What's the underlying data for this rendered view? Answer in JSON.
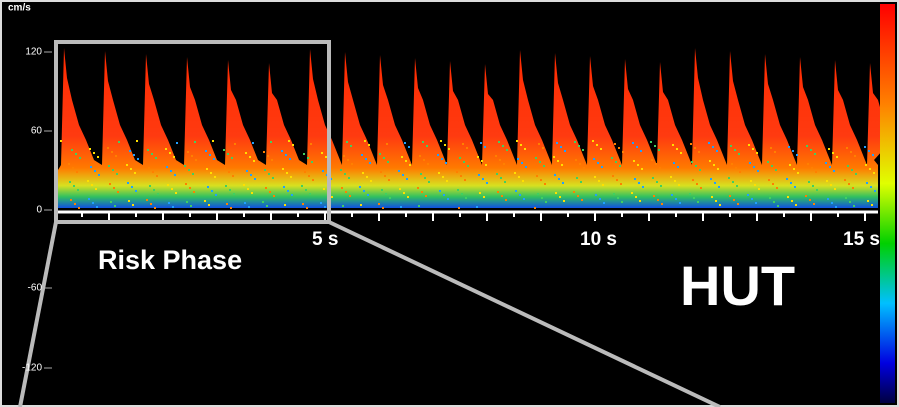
{
  "axis": {
    "unit": "cm/s",
    "y_labels": [
      "120",
      "60",
      "0",
      "-60",
      "-120"
    ],
    "x_labels": [
      "5 s",
      "10 s",
      "15 s"
    ]
  },
  "annotations": {
    "phase": "Risk Phase",
    "condition": "HUT"
  }
}
